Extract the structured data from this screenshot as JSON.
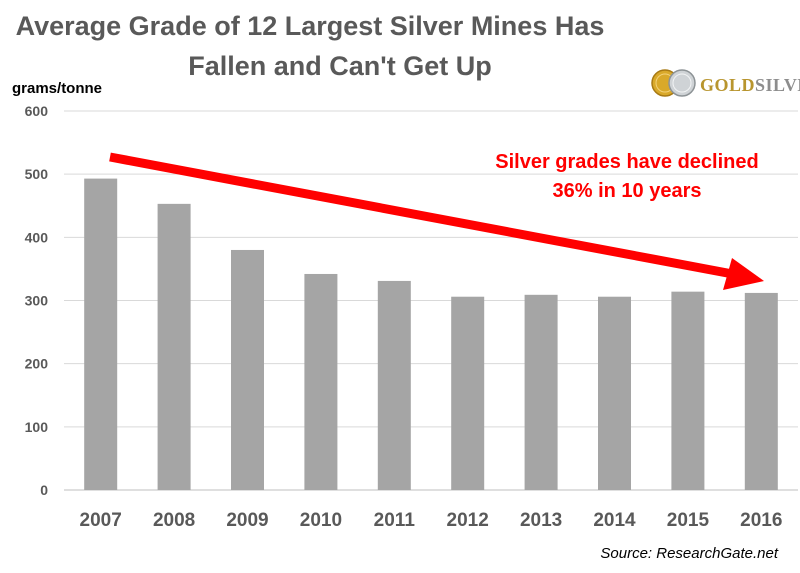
{
  "chart_data": {
    "type": "bar",
    "title_lines": [
      "Average Grade of 12 Largest Silver Mines Has",
      "Fallen and Can't Get Up"
    ],
    "ylabel": "grams/tonne",
    "xlabel": "",
    "categories": [
      "2007",
      "2008",
      "2009",
      "2010",
      "2011",
      "2012",
      "2013",
      "2014",
      "2015",
      "2016"
    ],
    "values": [
      493,
      453,
      380,
      342,
      331,
      306,
      309,
      306,
      314,
      312
    ],
    "ylim": [
      0,
      600
    ],
    "yticks": [
      0,
      100,
      200,
      300,
      400,
      500,
      600
    ],
    "grid": true,
    "annotation_lines": [
      "Silver grades have declined",
      "36% in 10 years"
    ],
    "source": "Source: ResearchGate.net",
    "colors": {
      "bar": "#a5a5a5",
      "arrow": "#ff0000",
      "annotation": "#ff0000",
      "grid": "#d9d9d9",
      "axis_text": "#595959"
    }
  },
  "logo": {
    "brand_gold": "GOLD",
    "brand_silver": "SILVER",
    "mark": "®"
  }
}
